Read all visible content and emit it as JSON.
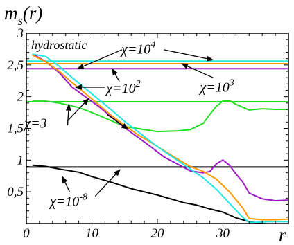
{
  "chart_data": {
    "type": "line",
    "title": "",
    "ylabel_main": "m",
    "ylabel_sub": "s",
    "ylabel_arg": "(r)",
    "xlabel": "r",
    "xlim": [
      0,
      40
    ],
    "ylim": [
      0,
      3
    ],
    "xticks": [
      0,
      10,
      20,
      30
    ],
    "yticks": [
      {
        "v": 0.5,
        "label": "0,5"
      },
      {
        "v": 1,
        "label": "1"
      },
      {
        "v": 1.5,
        "label": "1,5"
      },
      {
        "v": 2,
        "label": "2"
      },
      {
        "v": 2.5,
        "label": "2,5"
      },
      {
        "v": 3,
        "label": "3"
      }
    ],
    "hydrostatic_label": "hydrostatic",
    "colors": {
      "chi_1e-8": "#000000",
      "chi_3": "#22dd22",
      "chi_1e2": "#9b18c4",
      "chi_1e3": "#ff9900",
      "chi_1e4": "#22e6e6"
    },
    "series": [
      {
        "id": "hyd_1e-8",
        "color_key": "chi_1e-8",
        "width": 2,
        "x": [
          0,
          40
        ],
        "y": [
          0.89,
          0.89
        ]
      },
      {
        "id": "hyd_3",
        "color_key": "chi_3",
        "width": 2,
        "x": [
          0,
          40
        ],
        "y": [
          1.92,
          1.92
        ]
      },
      {
        "id": "hyd_1e2",
        "color_key": "chi_1e2",
        "width": 2,
        "x": [
          0,
          40
        ],
        "y": [
          2.44,
          2.44
        ]
      },
      {
        "id": "hyd_1e3",
        "color_key": "chi_1e3",
        "width": 2,
        "x": [
          0,
          40
        ],
        "y": [
          2.52,
          2.52
        ]
      },
      {
        "id": "hyd_1e4",
        "color_key": "chi_1e4",
        "width": 2,
        "x": [
          0,
          40
        ],
        "y": [
          2.56,
          2.56
        ]
      },
      {
        "id": "chi_1e-8",
        "color_key": "chi_1e-8",
        "width": 2,
        "x": [
          1,
          3,
          5,
          8,
          10,
          13,
          16,
          20,
          24,
          26,
          28,
          30,
          32,
          34,
          36,
          38,
          40
        ],
        "y": [
          0.92,
          0.9,
          0.86,
          0.81,
          0.74,
          0.65,
          0.55,
          0.45,
          0.33,
          0.29,
          0.23,
          0.18,
          0.09,
          0.03,
          0.0,
          -0.02,
          -0.01
        ]
      },
      {
        "id": "chi_3",
        "color_key": "chi_3",
        "width": 2,
        "x": [
          1,
          3,
          5,
          8,
          10,
          13,
          15,
          18,
          20,
          23,
          25,
          27,
          28,
          29,
          30,
          31,
          32,
          34,
          36,
          38,
          40
        ],
        "y": [
          1.93,
          1.93,
          1.9,
          1.83,
          1.75,
          1.62,
          1.53,
          1.48,
          1.45,
          1.46,
          1.48,
          1.58,
          1.72,
          1.85,
          1.93,
          1.94,
          1.88,
          1.79,
          1.81,
          1.8,
          1.8
        ]
      },
      {
        "id": "chi_1e2",
        "color_key": "chi_1e2",
        "width": 2,
        "x": [
          1,
          3,
          5,
          7,
          9,
          11,
          13,
          15,
          17,
          19,
          21,
          23,
          25,
          27,
          28,
          29,
          30,
          31,
          32,
          33,
          34,
          36,
          38,
          40
        ],
        "y": [
          2.67,
          2.55,
          2.38,
          2.15,
          2.0,
          1.85,
          1.68,
          1.51,
          1.36,
          1.21,
          1.05,
          0.94,
          0.83,
          0.8,
          0.82,
          0.94,
          1.0,
          0.92,
          0.78,
          0.66,
          0.48,
          0.39,
          0.36,
          0.37
        ]
      },
      {
        "id": "chi_1e3",
        "color_key": "chi_1e3",
        "width": 2,
        "x": [
          1,
          3,
          5,
          7,
          9,
          11,
          13,
          15,
          17,
          19,
          21,
          23,
          25,
          27,
          29,
          31,
          33,
          34,
          36,
          38,
          40
        ],
        "y": [
          2.65,
          2.55,
          2.4,
          2.22,
          2.05,
          1.88,
          1.7,
          1.55,
          1.4,
          1.28,
          1.15,
          1.02,
          0.9,
          0.82,
          0.7,
          0.5,
          0.25,
          0.08,
          0.06,
          0.06,
          0.07
        ]
      },
      {
        "id": "chi_1e4",
        "color_key": "chi_1e4",
        "width": 2,
        "x": [
          1,
          3,
          5,
          7,
          9,
          11,
          13,
          15,
          17,
          19,
          21,
          23,
          25,
          27,
          29,
          31,
          33,
          34,
          35,
          37,
          40
        ],
        "y": [
          2.67,
          2.63,
          2.48,
          2.3,
          2.13,
          1.96,
          1.79,
          1.61,
          1.45,
          1.29,
          1.14,
          1.0,
          0.86,
          0.72,
          0.54,
          0.32,
          0.1,
          0.02,
          0.02,
          0.03,
          0.03
        ]
      }
    ],
    "annotations": [
      {
        "id": "chi-1e4",
        "base": "χ=10",
        "exp": "4",
        "tx": 14.5,
        "ty": 2.68,
        "arrows": [
          [
            14.6,
            2.74,
            7.8,
            2.44
          ],
          [
            21.0,
            2.74,
            28.5,
            2.58
          ]
        ]
      },
      {
        "id": "chi-1e2",
        "base": "χ=10",
        "exp": "2",
        "tx": 12.2,
        "ty": 2.06,
        "arrows": [
          [
            12.0,
            2.15,
            7.5,
            2.15
          ],
          [
            14.2,
            2.24,
            13.1,
            2.44
          ]
        ]
      },
      {
        "id": "chi-1e3",
        "base": "χ=10",
        "exp": "3",
        "tx": 26.5,
        "ty": 2.08,
        "arrows": [
          [
            28.5,
            2.3,
            23.7,
            2.52
          ]
        ]
      },
      {
        "id": "chi-3",
        "base": "χ=3",
        "exp": "",
        "tx": -0.3,
        "ty": 1.51,
        "arrows": [
          [
            6.3,
            1.62,
            9.5,
            1.97
          ],
          [
            6.3,
            1.55,
            6.5,
            1.88
          ],
          [
            12.3,
            1.72,
            15.5,
            1.49
          ]
        ]
      },
      {
        "id": "chi-1e-8",
        "base": "χ=10",
        "exp": "-8",
        "tx": 3.6,
        "ty": 0.28,
        "arrows": [
          [
            6.6,
            0.5,
            5.5,
            0.74
          ],
          [
            10.5,
            0.43,
            14.3,
            0.85
          ]
        ]
      }
    ]
  }
}
